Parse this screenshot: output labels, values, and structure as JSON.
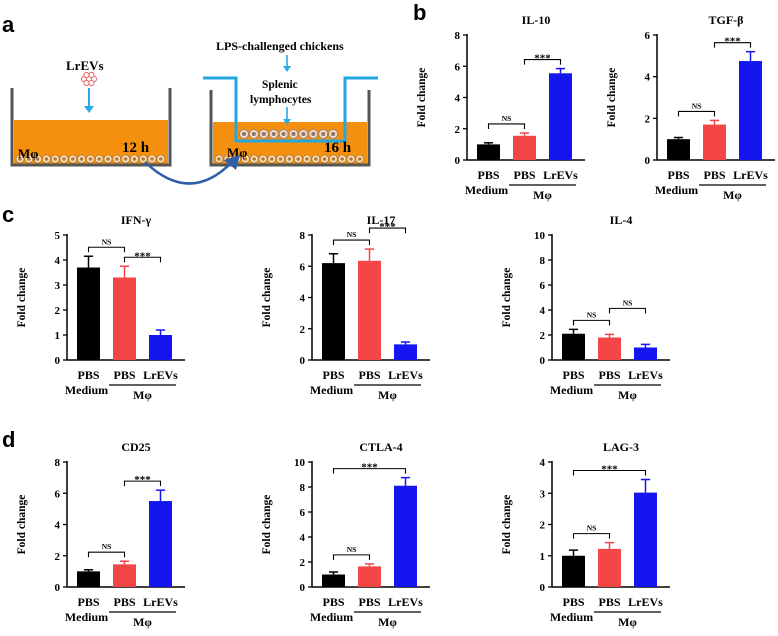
{
  "panels": {
    "a": "a",
    "b": "b",
    "c": "c",
    "d": "d"
  },
  "schematic": {
    "lrevs_label": "LrEVs",
    "lps_label": "LPS-challenged chickens",
    "splenic_label": "Splenic",
    "lymphocytes_label": "lymphocytes",
    "macrophage_label_1": "Mφ",
    "time_label_1": "12 h",
    "macrophage_label_2": "Mφ",
    "time_label_2": "16 h",
    "colors": {
      "medium": "#f5900e",
      "arrow": "#29a9e8",
      "transwell": "#22a7e0",
      "curve": "#2e5fa8",
      "wall": "#555555"
    }
  },
  "chart_data": [
    {
      "type": "bar",
      "title": "IL-10",
      "ylabel": "Fold change",
      "ylim": [
        0,
        8
      ],
      "ticks": [
        0,
        2,
        4,
        6,
        8
      ],
      "categories": [
        "PBS",
        "PBS",
        "LrEVs"
      ],
      "values": [
        1.0,
        1.55,
        5.55
      ],
      "errors": [
        0.1,
        0.18,
        0.3
      ],
      "colors": [
        "#000000",
        "#f44646",
        "#1515f0"
      ],
      "group_labels": [
        "Medium",
        "Mφ"
      ],
      "comparisons": [
        {
          "from": 0,
          "to": 1,
          "label": "NS"
        },
        {
          "from": 1,
          "to": 2,
          "label": "***"
        }
      ]
    },
    {
      "type": "bar",
      "title": "TGF-β",
      "ylabel": "Fold change",
      "ylim": [
        0,
        6
      ],
      "ticks": [
        0,
        2,
        4,
        6
      ],
      "categories": [
        "PBS",
        "PBS",
        "LrEVs"
      ],
      "values": [
        1.0,
        1.7,
        4.75
      ],
      "errors": [
        0.08,
        0.2,
        0.45
      ],
      "colors": [
        "#000000",
        "#f44646",
        "#1515f0"
      ],
      "group_labels": [
        "Medium",
        "Mφ"
      ],
      "comparisons": [
        {
          "from": 0,
          "to": 1,
          "label": "NS"
        },
        {
          "from": 1,
          "to": 2,
          "label": "***"
        }
      ]
    },
    {
      "type": "bar",
      "title": "IFN-γ",
      "ylabel": "Fold change",
      "ylim": [
        0,
        5
      ],
      "ticks": [
        0,
        1,
        2,
        3,
        4,
        5
      ],
      "categories": [
        "PBS",
        "PBS",
        "LrEVs"
      ],
      "values": [
        3.7,
        3.3,
        1.0
      ],
      "errors": [
        0.45,
        0.45,
        0.2
      ],
      "colors": [
        "#000000",
        "#f44646",
        "#1515f0"
      ],
      "group_labels": [
        "Medium",
        "Mφ"
      ],
      "comparisons": [
        {
          "from": 0,
          "to": 1,
          "label": "NS"
        },
        {
          "from": 1,
          "to": 2,
          "label": "***"
        }
      ]
    },
    {
      "type": "bar",
      "title": "IL-17",
      "ylabel": "Fold change",
      "ylim": [
        0,
        8
      ],
      "ticks": [
        0,
        2,
        4,
        6,
        8
      ],
      "categories": [
        "PBS",
        "PBS",
        "LrEVs"
      ],
      "values": [
        6.2,
        6.35,
        1.0
      ],
      "errors": [
        0.6,
        0.75,
        0.15
      ],
      "colors": [
        "#000000",
        "#f44646",
        "#1515f0"
      ],
      "group_labels": [
        "Medium",
        "Mφ"
      ],
      "comparisons": [
        {
          "from": 0,
          "to": 1,
          "label": "NS"
        },
        {
          "from": 1,
          "to": 2,
          "label": "***"
        }
      ]
    },
    {
      "type": "bar",
      "title": "IL-4",
      "ylabel": "Fold change",
      "ylim": [
        0,
        10
      ],
      "ticks": [
        0,
        2,
        4,
        6,
        8,
        10
      ],
      "categories": [
        "PBS",
        "PBS",
        "LrEVs"
      ],
      "values": [
        2.1,
        1.8,
        1.0
      ],
      "errors": [
        0.35,
        0.25,
        0.25
      ],
      "colors": [
        "#000000",
        "#f44646",
        "#1515f0"
      ],
      "group_labels": [
        "Medium",
        "Mφ"
      ],
      "comparisons": [
        {
          "from": 0,
          "to": 1,
          "label": "NS"
        },
        {
          "from": 1,
          "to": 2,
          "label": "NS"
        }
      ]
    },
    {
      "type": "bar",
      "title": "CD25",
      "ylabel": "Fold change",
      "ylim": [
        0,
        8
      ],
      "ticks": [
        0,
        2,
        4,
        6,
        8
      ],
      "categories": [
        "PBS",
        "PBS",
        "LrEVs"
      ],
      "values": [
        1.0,
        1.45,
        5.5
      ],
      "errors": [
        0.1,
        0.2,
        0.7
      ],
      "colors": [
        "#000000",
        "#f44646",
        "#1515f0"
      ],
      "group_labels": [
        "Medium",
        "Mφ"
      ],
      "comparisons": [
        {
          "from": 0,
          "to": 1,
          "label": "NS"
        },
        {
          "from": 1,
          "to": 2,
          "label": "***"
        }
      ]
    },
    {
      "type": "bar",
      "title": "CTLA-4",
      "ylabel": "Fold change",
      "ylim": [
        0,
        10
      ],
      "ticks": [
        0,
        2,
        4,
        6,
        8,
        10
      ],
      "categories": [
        "PBS",
        "PBS",
        "LrEVs"
      ],
      "values": [
        1.0,
        1.65,
        8.1
      ],
      "errors": [
        0.2,
        0.2,
        0.65
      ],
      "colors": [
        "#000000",
        "#f44646",
        "#1515f0"
      ],
      "group_labels": [
        "Medium",
        "Mφ"
      ],
      "comparisons": [
        {
          "from": 0,
          "to": 1,
          "label": "NS"
        },
        {
          "from": 0,
          "to": 2,
          "label": "***"
        }
      ]
    },
    {
      "type": "bar",
      "title": "LAG-3",
      "ylabel": "Fold change",
      "ylim": [
        0,
        4
      ],
      "ticks": [
        0,
        1,
        2,
        3,
        4
      ],
      "categories": [
        "PBS",
        "PBS",
        "LrEVs"
      ],
      "values": [
        1.0,
        1.22,
        3.02
      ],
      "errors": [
        0.18,
        0.2,
        0.42
      ],
      "colors": [
        "#000000",
        "#f44646",
        "#1515f0"
      ],
      "group_labels": [
        "Medium",
        "Mφ"
      ],
      "comparisons": [
        {
          "from": 0,
          "to": 1,
          "label": "NS"
        },
        {
          "from": 0,
          "to": 2,
          "label": "***"
        }
      ]
    }
  ]
}
